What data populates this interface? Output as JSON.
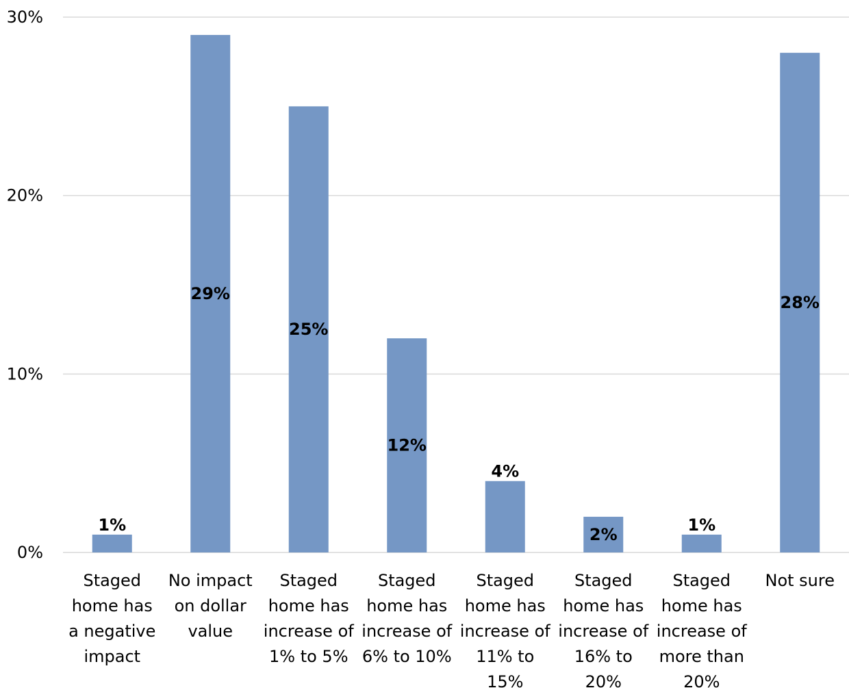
{
  "chart_data": {
    "type": "bar",
    "categories": [
      [
        "Staged",
        "home has",
        "a negative",
        "impact"
      ],
      [
        "No impact",
        "on dollar",
        "value"
      ],
      [
        "Staged",
        "home has",
        "increase of",
        "1% to 5%"
      ],
      [
        "Staged",
        "home has",
        "increase of",
        "6% to 10%"
      ],
      [
        "Staged",
        "home has",
        "increase of",
        "11% to",
        "15%"
      ],
      [
        "Staged",
        "home has",
        "increase of",
        "16% to",
        "20%"
      ],
      [
        "Staged",
        "home has",
        "increase of",
        "more than",
        "20%"
      ],
      [
        "Not sure"
      ]
    ],
    "values": [
      1,
      29,
      25,
      12,
      4,
      2,
      1,
      28
    ],
    "data_labels": [
      "1%",
      "29%",
      "25%",
      "12%",
      "4%",
      "2%",
      "1%",
      "28%"
    ],
    "data_label_position": [
      "outside",
      "center",
      "center",
      "center",
      "outside",
      "center",
      "outside",
      "center"
    ],
    "ylim": [
      0,
      30
    ],
    "yticks": [
      0,
      10,
      20,
      30
    ],
    "ytick_labels": [
      "0%",
      "10%",
      "20%",
      "30%"
    ],
    "grid": true,
    "bar_color": "#7597c5"
  }
}
